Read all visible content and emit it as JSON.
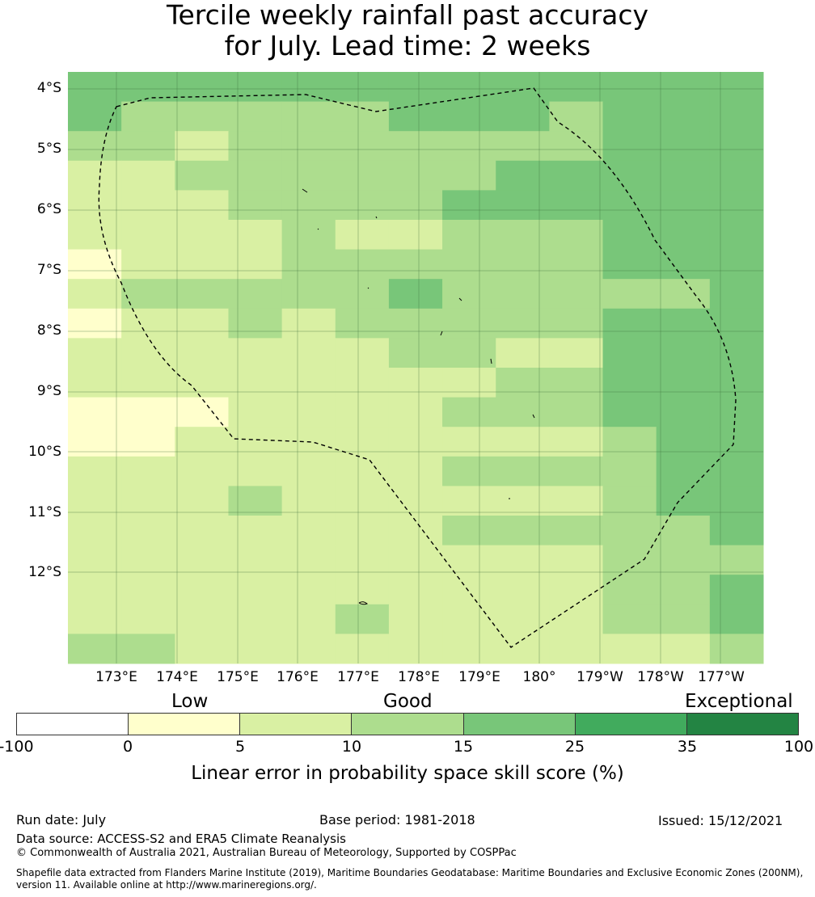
{
  "title": {
    "line1": "Tercile weekly rainfall past accuracy",
    "line2": "for July. Lead time: 2 weeks"
  },
  "map": {
    "lat_labels": [
      "4°S",
      "5°S",
      "6°S",
      "7°S",
      "8°S",
      "9°S",
      "10°S",
      "11°S",
      "12°S"
    ],
    "lon_labels": [
      "173°E",
      "174°E",
      "175°E",
      "176°E",
      "177°E",
      "178°E",
      "179°E",
      "180°",
      "179°W",
      "178°W",
      "177°W"
    ],
    "boundary_line": "dashed black",
    "gridlines": true
  },
  "legend": {
    "categories": [
      "Low",
      "Good",
      "Exceptional"
    ],
    "ticks": [
      "-100",
      "0",
      "5",
      "10",
      "15",
      "25",
      "35",
      "100"
    ],
    "colors": [
      "#ffffff",
      "#ffffcc",
      "#d9f0a3",
      "#addd8e",
      "#78c679",
      "#41ab5d",
      "#238443"
    ],
    "title": "Linear error in probability space skill score (%)"
  },
  "footer": {
    "run_date": "Run date: July",
    "base_period": "Base period: 1981-2018",
    "issued": "Issued: 15/12/2021",
    "data_source": "Data source: ACCESS-S2 and ERA5 Climate Reanalysis",
    "copyright": "© Commonwealth of Australia 2021, Australian Bureau of Meteorology, Supported by COSPPac",
    "shapefile": "Shapefile data extracted from Flanders Marine Institute (2019), Maritime Boundaries Geodatabase: Maritime Boundaries and Exclusive Economic Zones (200NM), version 11. Available online at http://www.marineregions.org/."
  }
}
